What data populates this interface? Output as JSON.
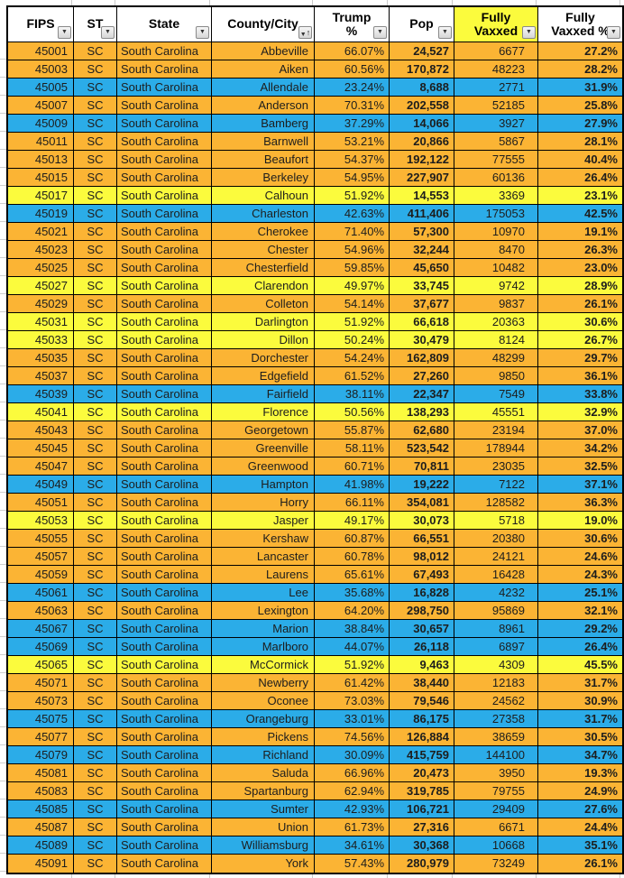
{
  "table": {
    "columns": [
      {
        "label": "FIPS",
        "icon": "filter-dropdown"
      },
      {
        "label": "ST",
        "icon": "filter-dropdown"
      },
      {
        "label": "State",
        "icon": "filter-dropdown"
      },
      {
        "label": "County/City",
        "icon": "filter-sort-asc"
      },
      {
        "label": "Trump\n%",
        "icon": "filter-dropdown"
      },
      {
        "label": "Pop",
        "icon": "filter-dropdown"
      },
      {
        "label": "Fully\nVaxxed",
        "icon": "filter-dropdown",
        "highlight": true
      },
      {
        "label": "Fully\nVaxxed %",
        "icon": "filter-dropdown"
      }
    ],
    "rows": [
      {
        "fips": "45001",
        "st": "SC",
        "state": "South Carolina",
        "county": "Abbeville",
        "trump_pct": "66.07%",
        "pop": "24,527",
        "vaxxed": "6677",
        "vaxxed_pct": "27.2%",
        "color": "orange"
      },
      {
        "fips": "45003",
        "st": "SC",
        "state": "South Carolina",
        "county": "Aiken",
        "trump_pct": "60.56%",
        "pop": "170,872",
        "vaxxed": "48223",
        "vaxxed_pct": "28.2%",
        "color": "orange"
      },
      {
        "fips": "45005",
        "st": "SC",
        "state": "South Carolina",
        "county": "Allendale",
        "trump_pct": "23.24%",
        "pop": "8,688",
        "vaxxed": "2771",
        "vaxxed_pct": "31.9%",
        "color": "blue"
      },
      {
        "fips": "45007",
        "st": "SC",
        "state": "South Carolina",
        "county": "Anderson",
        "trump_pct": "70.31%",
        "pop": "202,558",
        "vaxxed": "52185",
        "vaxxed_pct": "25.8%",
        "color": "orange"
      },
      {
        "fips": "45009",
        "st": "SC",
        "state": "South Carolina",
        "county": "Bamberg",
        "trump_pct": "37.29%",
        "pop": "14,066",
        "vaxxed": "3927",
        "vaxxed_pct": "27.9%",
        "color": "blue"
      },
      {
        "fips": "45011",
        "st": "SC",
        "state": "South Carolina",
        "county": "Barnwell",
        "trump_pct": "53.21%",
        "pop": "20,866",
        "vaxxed": "5867",
        "vaxxed_pct": "28.1%",
        "color": "orange"
      },
      {
        "fips": "45013",
        "st": "SC",
        "state": "South Carolina",
        "county": "Beaufort",
        "trump_pct": "54.37%",
        "pop": "192,122",
        "vaxxed": "77555",
        "vaxxed_pct": "40.4%",
        "color": "orange"
      },
      {
        "fips": "45015",
        "st": "SC",
        "state": "South Carolina",
        "county": "Berkeley",
        "trump_pct": "54.95%",
        "pop": "227,907",
        "vaxxed": "60136",
        "vaxxed_pct": "26.4%",
        "color": "orange"
      },
      {
        "fips": "45017",
        "st": "SC",
        "state": "South Carolina",
        "county": "Calhoun",
        "trump_pct": "51.92%",
        "pop": "14,553",
        "vaxxed": "3369",
        "vaxxed_pct": "23.1%",
        "color": "yellow"
      },
      {
        "fips": "45019",
        "st": "SC",
        "state": "South Carolina",
        "county": "Charleston",
        "trump_pct": "42.63%",
        "pop": "411,406",
        "vaxxed": "175053",
        "vaxxed_pct": "42.5%",
        "color": "blue"
      },
      {
        "fips": "45021",
        "st": "SC",
        "state": "South Carolina",
        "county": "Cherokee",
        "trump_pct": "71.40%",
        "pop": "57,300",
        "vaxxed": "10970",
        "vaxxed_pct": "19.1%",
        "color": "orange"
      },
      {
        "fips": "45023",
        "st": "SC",
        "state": "South Carolina",
        "county": "Chester",
        "trump_pct": "54.96%",
        "pop": "32,244",
        "vaxxed": "8470",
        "vaxxed_pct": "26.3%",
        "color": "orange"
      },
      {
        "fips": "45025",
        "st": "SC",
        "state": "South Carolina",
        "county": "Chesterfield",
        "trump_pct": "59.85%",
        "pop": "45,650",
        "vaxxed": "10482",
        "vaxxed_pct": "23.0%",
        "color": "orange"
      },
      {
        "fips": "45027",
        "st": "SC",
        "state": "South Carolina",
        "county": "Clarendon",
        "trump_pct": "49.97%",
        "pop": "33,745",
        "vaxxed": "9742",
        "vaxxed_pct": "28.9%",
        "color": "yellow"
      },
      {
        "fips": "45029",
        "st": "SC",
        "state": "South Carolina",
        "county": "Colleton",
        "trump_pct": "54.14%",
        "pop": "37,677",
        "vaxxed": "9837",
        "vaxxed_pct": "26.1%",
        "color": "orange"
      },
      {
        "fips": "45031",
        "st": "SC",
        "state": "South Carolina",
        "county": "Darlington",
        "trump_pct": "51.92%",
        "pop": "66,618",
        "vaxxed": "20363",
        "vaxxed_pct": "30.6%",
        "color": "yellow"
      },
      {
        "fips": "45033",
        "st": "SC",
        "state": "South Carolina",
        "county": "Dillon",
        "trump_pct": "50.24%",
        "pop": "30,479",
        "vaxxed": "8124",
        "vaxxed_pct": "26.7%",
        "color": "yellow"
      },
      {
        "fips": "45035",
        "st": "SC",
        "state": "South Carolina",
        "county": "Dorchester",
        "trump_pct": "54.24%",
        "pop": "162,809",
        "vaxxed": "48299",
        "vaxxed_pct": "29.7%",
        "color": "orange"
      },
      {
        "fips": "45037",
        "st": "SC",
        "state": "South Carolina",
        "county": "Edgefield",
        "trump_pct": "61.52%",
        "pop": "27,260",
        "vaxxed": "9850",
        "vaxxed_pct": "36.1%",
        "color": "orange"
      },
      {
        "fips": "45039",
        "st": "SC",
        "state": "South Carolina",
        "county": "Fairfield",
        "trump_pct": "38.11%",
        "pop": "22,347",
        "vaxxed": "7549",
        "vaxxed_pct": "33.8%",
        "color": "blue"
      },
      {
        "fips": "45041",
        "st": "SC",
        "state": "South Carolina",
        "county": "Florence",
        "trump_pct": "50.56%",
        "pop": "138,293",
        "vaxxed": "45551",
        "vaxxed_pct": "32.9%",
        "color": "yellow"
      },
      {
        "fips": "45043",
        "st": "SC",
        "state": "South Carolina",
        "county": "Georgetown",
        "trump_pct": "55.87%",
        "pop": "62,680",
        "vaxxed": "23194",
        "vaxxed_pct": "37.0%",
        "color": "orange"
      },
      {
        "fips": "45045",
        "st": "SC",
        "state": "South Carolina",
        "county": "Greenville",
        "trump_pct": "58.11%",
        "pop": "523,542",
        "vaxxed": "178944",
        "vaxxed_pct": "34.2%",
        "color": "orange"
      },
      {
        "fips": "45047",
        "st": "SC",
        "state": "South Carolina",
        "county": "Greenwood",
        "trump_pct": "60.71%",
        "pop": "70,811",
        "vaxxed": "23035",
        "vaxxed_pct": "32.5%",
        "color": "orange"
      },
      {
        "fips": "45049",
        "st": "SC",
        "state": "South Carolina",
        "county": "Hampton",
        "trump_pct": "41.98%",
        "pop": "19,222",
        "vaxxed": "7122",
        "vaxxed_pct": "37.1%",
        "color": "blue"
      },
      {
        "fips": "45051",
        "st": "SC",
        "state": "South Carolina",
        "county": "Horry",
        "trump_pct": "66.11%",
        "pop": "354,081",
        "vaxxed": "128582",
        "vaxxed_pct": "36.3%",
        "color": "orange"
      },
      {
        "fips": "45053",
        "st": "SC",
        "state": "South Carolina",
        "county": "Jasper",
        "trump_pct": "49.17%",
        "pop": "30,073",
        "vaxxed": "5718",
        "vaxxed_pct": "19.0%",
        "color": "yellow"
      },
      {
        "fips": "45055",
        "st": "SC",
        "state": "South Carolina",
        "county": "Kershaw",
        "trump_pct": "60.87%",
        "pop": "66,551",
        "vaxxed": "20380",
        "vaxxed_pct": "30.6%",
        "color": "orange"
      },
      {
        "fips": "45057",
        "st": "SC",
        "state": "South Carolina",
        "county": "Lancaster",
        "trump_pct": "60.78%",
        "pop": "98,012",
        "vaxxed": "24121",
        "vaxxed_pct": "24.6%",
        "color": "orange"
      },
      {
        "fips": "45059",
        "st": "SC",
        "state": "South Carolina",
        "county": "Laurens",
        "trump_pct": "65.61%",
        "pop": "67,493",
        "vaxxed": "16428",
        "vaxxed_pct": "24.3%",
        "color": "orange"
      },
      {
        "fips": "45061",
        "st": "SC",
        "state": "South Carolina",
        "county": "Lee",
        "trump_pct": "35.68%",
        "pop": "16,828",
        "vaxxed": "4232",
        "vaxxed_pct": "25.1%",
        "color": "blue"
      },
      {
        "fips": "45063",
        "st": "SC",
        "state": "South Carolina",
        "county": "Lexington",
        "trump_pct": "64.20%",
        "pop": "298,750",
        "vaxxed": "95869",
        "vaxxed_pct": "32.1%",
        "color": "orange"
      },
      {
        "fips": "45067",
        "st": "SC",
        "state": "South Carolina",
        "county": "Marion",
        "trump_pct": "38.84%",
        "pop": "30,657",
        "vaxxed": "8961",
        "vaxxed_pct": "29.2%",
        "color": "blue"
      },
      {
        "fips": "45069",
        "st": "SC",
        "state": "South Carolina",
        "county": "Marlboro",
        "trump_pct": "44.07%",
        "pop": "26,118",
        "vaxxed": "6897",
        "vaxxed_pct": "26.4%",
        "color": "blue"
      },
      {
        "fips": "45065",
        "st": "SC",
        "state": "South Carolina",
        "county": "McCormick",
        "trump_pct": "51.92%",
        "pop": "9,463",
        "vaxxed": "4309",
        "vaxxed_pct": "45.5%",
        "color": "yellow"
      },
      {
        "fips": "45071",
        "st": "SC",
        "state": "South Carolina",
        "county": "Newberry",
        "trump_pct": "61.42%",
        "pop": "38,440",
        "vaxxed": "12183",
        "vaxxed_pct": "31.7%",
        "color": "orange"
      },
      {
        "fips": "45073",
        "st": "SC",
        "state": "South Carolina",
        "county": "Oconee",
        "trump_pct": "73.03%",
        "pop": "79,546",
        "vaxxed": "24562",
        "vaxxed_pct": "30.9%",
        "color": "orange"
      },
      {
        "fips": "45075",
        "st": "SC",
        "state": "South Carolina",
        "county": "Orangeburg",
        "trump_pct": "33.01%",
        "pop": "86,175",
        "vaxxed": "27358",
        "vaxxed_pct": "31.7%",
        "color": "blue"
      },
      {
        "fips": "45077",
        "st": "SC",
        "state": "South Carolina",
        "county": "Pickens",
        "trump_pct": "74.56%",
        "pop": "126,884",
        "vaxxed": "38659",
        "vaxxed_pct": "30.5%",
        "color": "orange"
      },
      {
        "fips": "45079",
        "st": "SC",
        "state": "South Carolina",
        "county": "Richland",
        "trump_pct": "30.09%",
        "pop": "415,759",
        "vaxxed": "144100",
        "vaxxed_pct": "34.7%",
        "color": "blue"
      },
      {
        "fips": "45081",
        "st": "SC",
        "state": "South Carolina",
        "county": "Saluda",
        "trump_pct": "66.96%",
        "pop": "20,473",
        "vaxxed": "3950",
        "vaxxed_pct": "19.3%",
        "color": "orange"
      },
      {
        "fips": "45083",
        "st": "SC",
        "state": "South Carolina",
        "county": "Spartanburg",
        "trump_pct": "62.94%",
        "pop": "319,785",
        "vaxxed": "79755",
        "vaxxed_pct": "24.9%",
        "color": "orange"
      },
      {
        "fips": "45085",
        "st": "SC",
        "state": "South Carolina",
        "county": "Sumter",
        "trump_pct": "42.93%",
        "pop": "106,721",
        "vaxxed": "29409",
        "vaxxed_pct": "27.6%",
        "color": "blue"
      },
      {
        "fips": "45087",
        "st": "SC",
        "state": "South Carolina",
        "county": "Union",
        "trump_pct": "61.73%",
        "pop": "27,316",
        "vaxxed": "6671",
        "vaxxed_pct": "24.4%",
        "color": "orange"
      },
      {
        "fips": "45089",
        "st": "SC",
        "state": "South Carolina",
        "county": "Williamsburg",
        "trump_pct": "34.61%",
        "pop": "30,368",
        "vaxxed": "10668",
        "vaxxed_pct": "35.1%",
        "color": "blue"
      },
      {
        "fips": "45091",
        "st": "SC",
        "state": "South Carolina",
        "county": "York",
        "trump_pct": "57.43%",
        "pop": "280,979",
        "vaxxed": "73249",
        "vaxxed_pct": "26.1%",
        "color": "orange"
      }
    ]
  },
  "colors": {
    "row_orange": "#FBB434",
    "row_blue": "#2BACE8",
    "row_yellow": "#FBFB3D",
    "header_highlight": "#FBFB3D",
    "border": "#000000"
  },
  "icons": {
    "filter-dropdown": "▼",
    "filter-sort-asc-triangle": "▼",
    "filter-sort-asc-arrow": "↑"
  }
}
